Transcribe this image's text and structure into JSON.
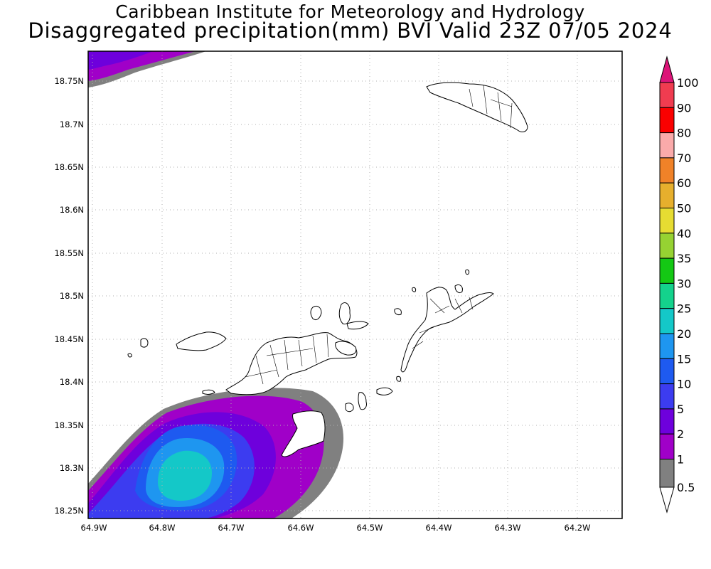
{
  "title": {
    "line1": "Caribbean Institute for Meteorology and Hydrology",
    "line2": "Disaggregated precipitation(mm) BVI Valid 23Z 07/05 2024"
  },
  "map": {
    "lon_ticks": [
      "64.9W",
      "64.8W",
      "64.7W",
      "64.6W",
      "64.5W",
      "64.4W",
      "64.3W",
      "64.2W"
    ],
    "lat_ticks": [
      "18.25N",
      "18.3N",
      "18.35N",
      "18.4N",
      "18.45N",
      "18.5N",
      "18.55N",
      "18.6N",
      "18.65N",
      "18.7N",
      "18.75N"
    ],
    "lon_range": [
      -64.9,
      -64.13
    ],
    "lat_range": [
      18.24,
      18.78
    ],
    "grid": "dotted"
  },
  "legend": {
    "levels": [
      "0.5",
      "1",
      "2",
      "5",
      "10",
      "15",
      "20",
      "25",
      "30",
      "35",
      "40",
      "50",
      "60",
      "70",
      "80",
      "90",
      "100"
    ],
    "colors": [
      "#ffffff",
      "#808080",
      "#a000c8",
      "#6e00dc",
      "#3c3cf0",
      "#1e5af0",
      "#1e96f0",
      "#14c8c8",
      "#14d28c",
      "#14c814",
      "#96d232",
      "#e6dc32",
      "#e6af2d",
      "#f08228",
      "#faaaaa",
      "#fa0000",
      "#f03c50",
      "#dc1478"
    ]
  },
  "precip_blobs": [
    {
      "level": "1",
      "color": "#808080"
    },
    {
      "level": "2",
      "color": "#a000c8"
    },
    {
      "level": "5",
      "color": "#6e00dc"
    },
    {
      "level": "10",
      "color": "#3c3cf0"
    },
    {
      "level": "15",
      "color": "#1e5af0"
    },
    {
      "level": "20",
      "color": "#1e96f0"
    },
    {
      "level": "25",
      "color": "#14c8c8"
    }
  ]
}
